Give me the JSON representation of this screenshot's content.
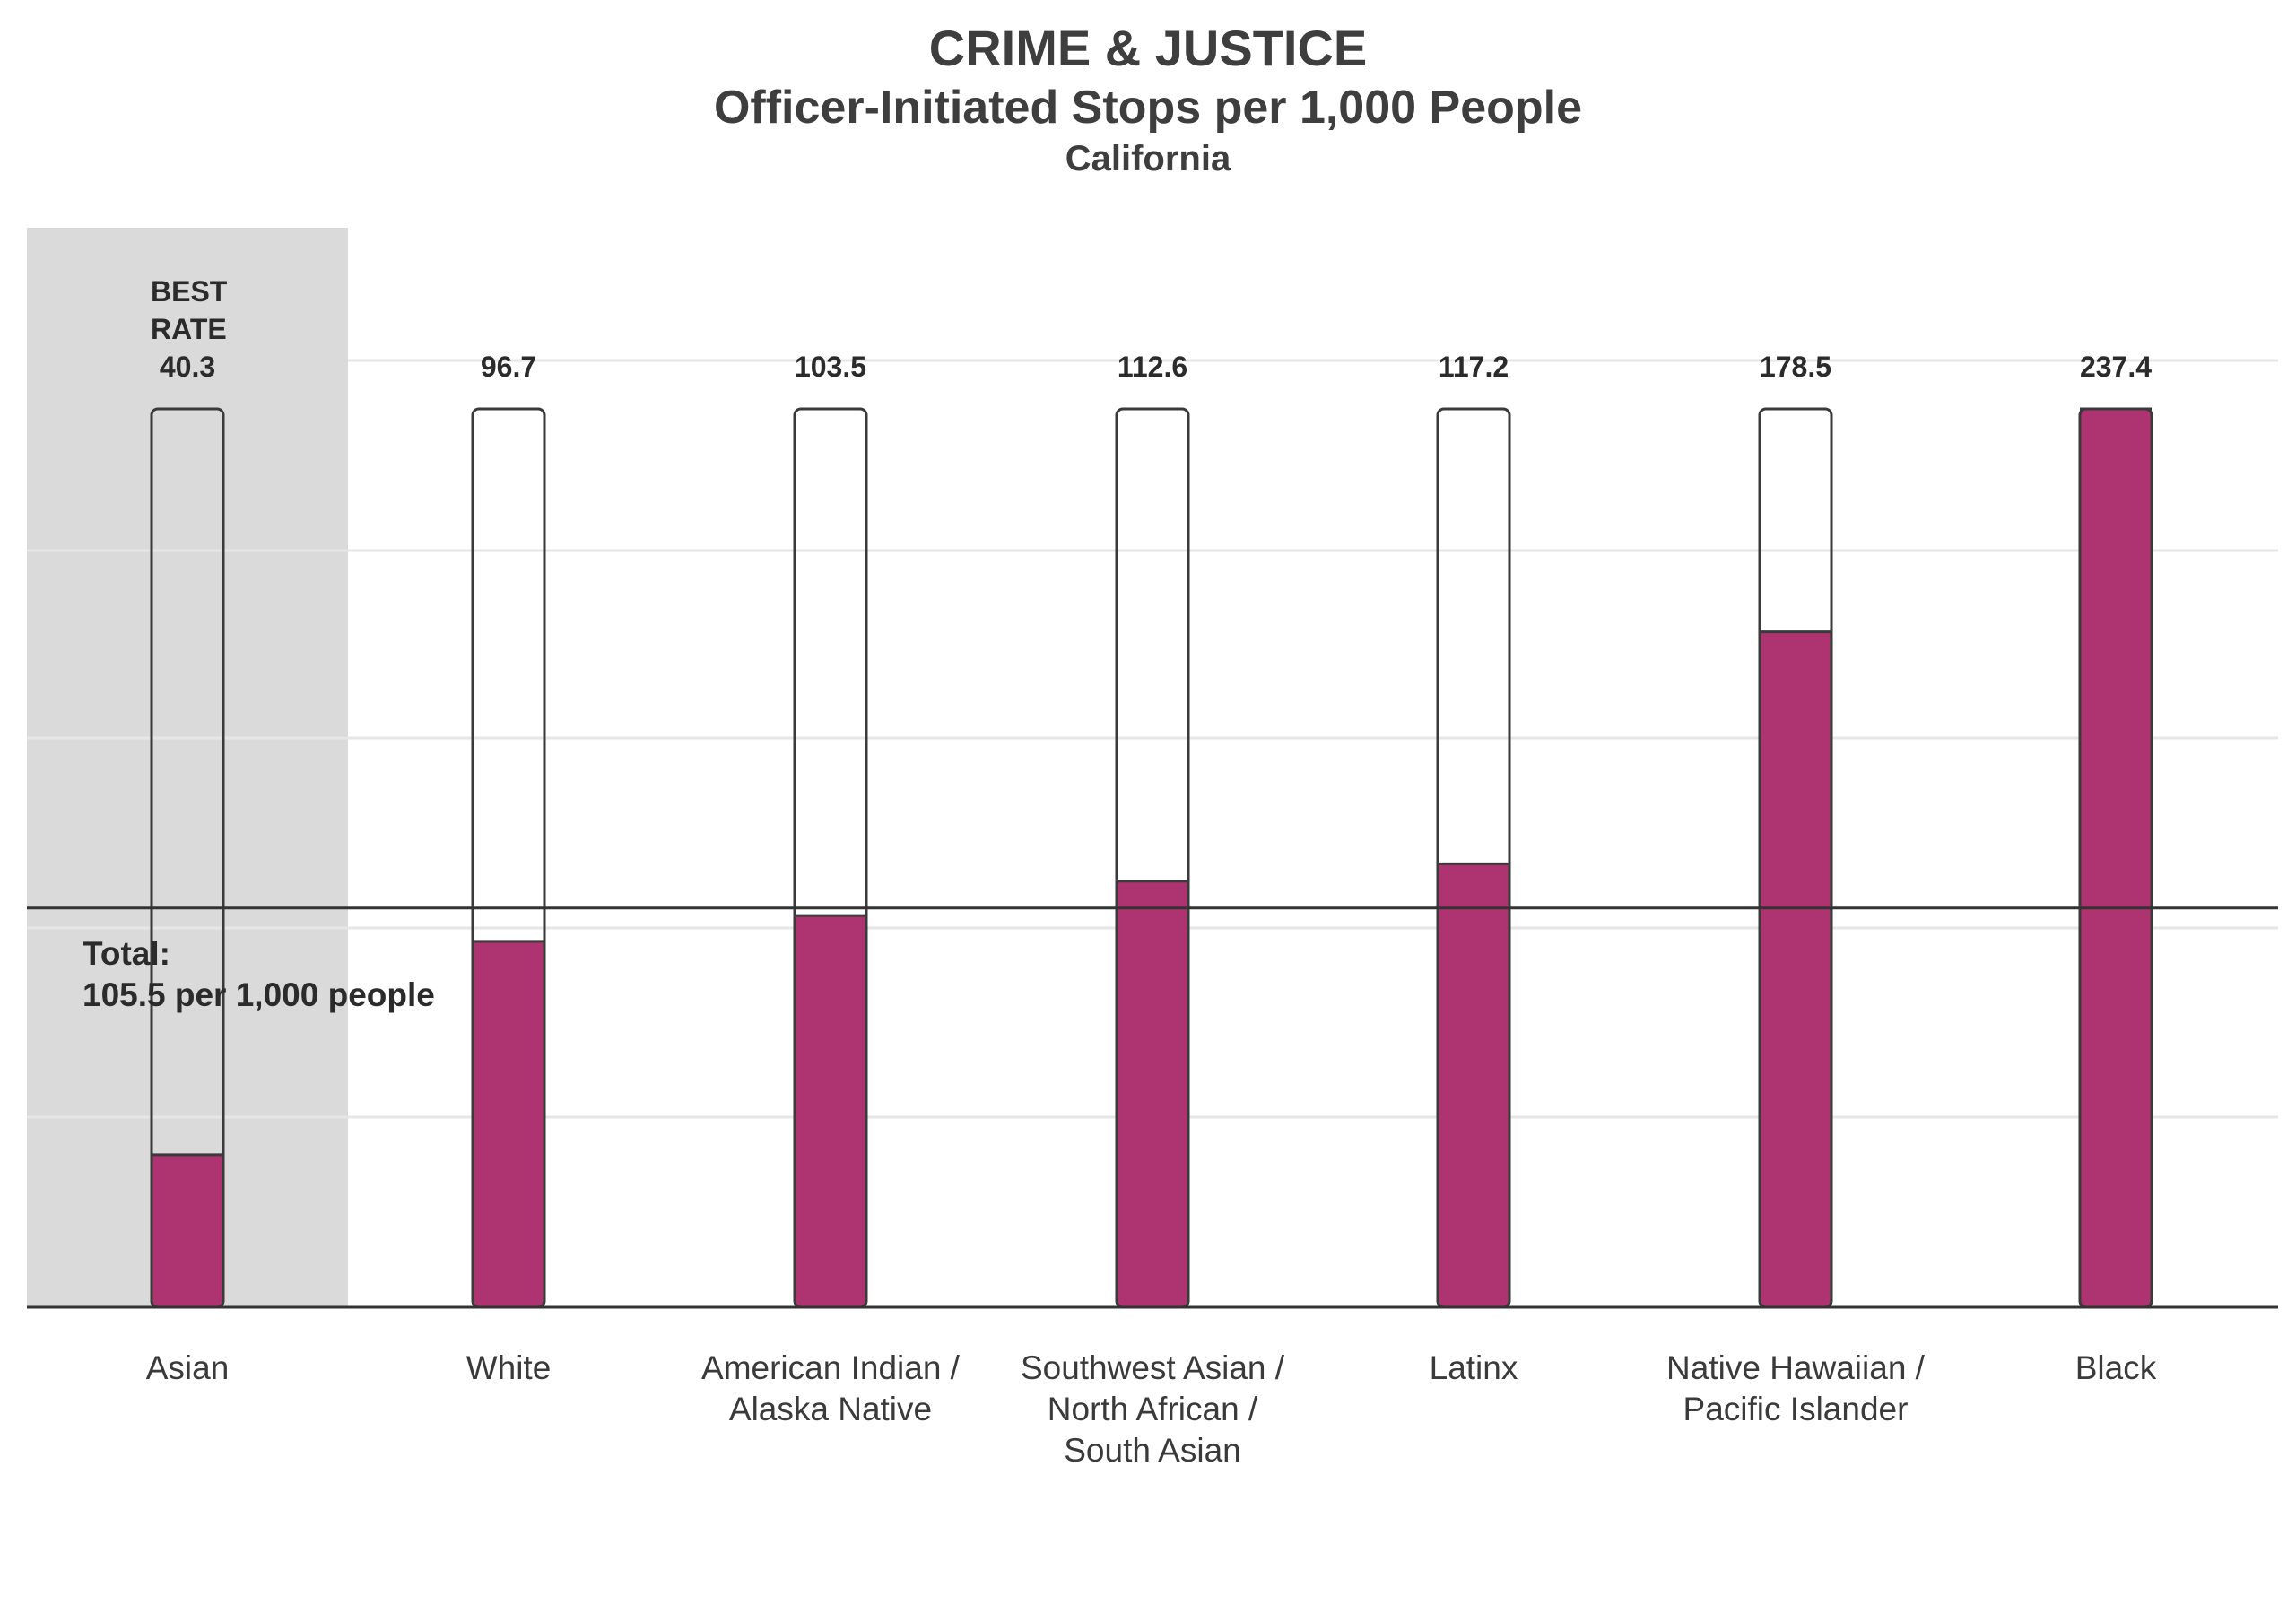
{
  "chart_data": {
    "type": "bar",
    "title": "CRIME & JUSTICE",
    "subtitle": "Officer-Initiated Stops per 1,000 People",
    "region": "California",
    "categories": [
      "Asian",
      "White",
      "American Indian / Alaska Native",
      "Southwest Asian / North African / South Asian",
      "Latinx",
      "Native Hawaiian / Pacific Islander",
      "Black"
    ],
    "category_lines": [
      [
        "Asian"
      ],
      [
        "White"
      ],
      [
        "American Indian /",
        "Alaska Native"
      ],
      [
        "Southwest Asian /",
        "North African /",
        "South Asian"
      ],
      [
        "Latinx"
      ],
      [
        "Native Hawaiian /",
        "Pacific Islander"
      ],
      [
        "Black"
      ]
    ],
    "values": [
      40.3,
      96.7,
      103.5,
      112.6,
      117.2,
      178.5,
      237.4
    ],
    "value_labels": [
      "40.3",
      "96.7",
      "103.5",
      "112.6",
      "117.2",
      "178.5",
      "237.4"
    ],
    "best_rate_label": [
      "BEST",
      "RATE"
    ],
    "best_index": 0,
    "total_label": [
      "Total:",
      "105.5 per 1,000 people"
    ],
    "total_value": 105.5,
    "ylim": [
      0,
      237.4
    ],
    "grid": true,
    "colors": {
      "bar": "#ad3471",
      "outline": "#3a3a3a",
      "highlight_bg": "#dadada",
      "grid": "#e6e6e6",
      "baseline": "#333333"
    }
  }
}
